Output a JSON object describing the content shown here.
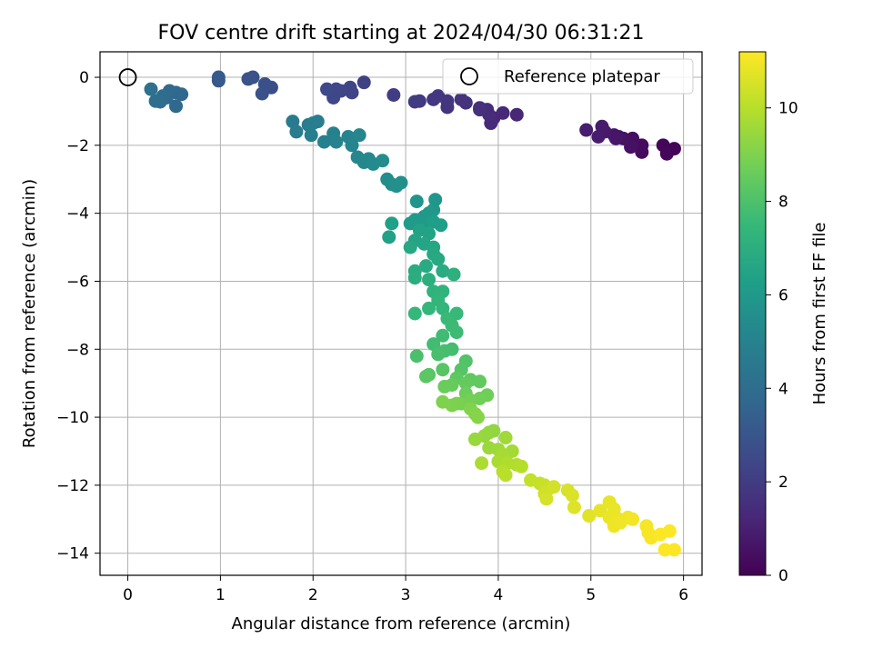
{
  "chart_data": {
    "type": "scatter",
    "title": "FOV centre drift starting at 2024/04/30 06:31:21",
    "xlabel": "Angular distance from reference (arcmin)",
    "ylabel": "Rotation from reference (arcmin)",
    "xlim": [
      -0.3,
      6.2
    ],
    "ylim": [
      -14.65,
      0.75
    ],
    "xticks": [
      0,
      1,
      2,
      3,
      4,
      5,
      6
    ],
    "yticks": [
      0,
      -2,
      -4,
      -6,
      -8,
      -10,
      -12,
      -14
    ],
    "grid": true,
    "legend": {
      "position": "top-right",
      "entries": [
        "Reference platepar"
      ]
    },
    "reference_point": {
      "label": "Reference platepar",
      "x": 0,
      "y": 0
    },
    "colorbar": {
      "label": "Hours from first FF file",
      "min": 0,
      "max": 11.2,
      "ticks": [
        0,
        2,
        4,
        6,
        8,
        10
      ],
      "colormap": [
        "#440154",
        "#482878",
        "#3e4989",
        "#31688e",
        "#26828e",
        "#1f9e89",
        "#35b779",
        "#6ece58",
        "#b5de2b",
        "#fde725"
      ]
    },
    "points": [
      [
        5.9,
        -2.1,
        0.1
      ],
      [
        5.78,
        -2.0,
        0.15
      ],
      [
        5.82,
        -2.25,
        0.2
      ],
      [
        5.55,
        -2.0,
        0.3
      ],
      [
        5.55,
        -2.2,
        0.35
      ],
      [
        5.45,
        -1.95,
        0.4
      ],
      [
        5.45,
        -1.8,
        0.45
      ],
      [
        5.43,
        -2.05,
        0.5
      ],
      [
        5.35,
        -1.8,
        0.55
      ],
      [
        5.3,
        -1.75,
        0.6
      ],
      [
        5.25,
        -1.7,
        0.65
      ],
      [
        5.27,
        -1.8,
        0.7
      ],
      [
        5.15,
        -1.6,
        0.75
      ],
      [
        5.12,
        -1.45,
        0.8
      ],
      [
        5.08,
        -1.75,
        0.85
      ],
      [
        4.95,
        -1.55,
        0.9
      ],
      [
        4.2,
        -1.1,
        1.2
      ],
      [
        4.05,
        -1.05,
        1.25
      ],
      [
        3.95,
        -1.2,
        1.3
      ],
      [
        3.92,
        -1.35,
        1.35
      ],
      [
        3.9,
        -1.1,
        1.4
      ],
      [
        3.88,
        -0.95,
        1.45
      ],
      [
        3.8,
        -0.9,
        1.5
      ],
      [
        3.8,
        -0.95,
        1.55
      ],
      [
        3.65,
        -0.75,
        1.6
      ],
      [
        3.6,
        -0.65,
        1.65
      ],
      [
        3.45,
        -0.88,
        1.7
      ],
      [
        3.45,
        -0.7,
        1.75
      ],
      [
        3.35,
        -0.55,
        1.8
      ],
      [
        3.3,
        -0.65,
        1.85
      ],
      [
        3.15,
        -0.7,
        1.9
      ],
      [
        3.1,
        -0.72,
        1.95
      ],
      [
        2.87,
        -0.52,
        2.0
      ],
      [
        2.55,
        -0.15,
        2.2
      ],
      [
        2.4,
        -0.3,
        2.25
      ],
      [
        2.42,
        -0.45,
        2.3
      ],
      [
        2.3,
        -0.4,
        2.35
      ],
      [
        2.25,
        -0.35,
        2.4
      ],
      [
        2.22,
        -0.6,
        2.45
      ],
      [
        2.15,
        -0.35,
        2.5
      ],
      [
        1.55,
        -0.3,
        2.7
      ],
      [
        1.48,
        -0.2,
        2.75
      ],
      [
        1.45,
        -0.48,
        2.8
      ],
      [
        1.35,
        0.0,
        2.85
      ],
      [
        1.3,
        -0.05,
        2.9
      ],
      [
        0.98,
        -0.1,
        3.1
      ],
      [
        0.98,
        0.0,
        3.15
      ],
      [
        0.58,
        -0.5,
        3.7
      ],
      [
        0.52,
        -0.45,
        3.75
      ],
      [
        0.52,
        -0.85,
        3.8
      ],
      [
        0.45,
        -0.4,
        3.85
      ],
      [
        0.42,
        -0.6,
        3.9
      ],
      [
        0.38,
        -0.55,
        3.95
      ],
      [
        0.35,
        -0.72,
        4.0
      ],
      [
        0.3,
        -0.7,
        4.05
      ],
      [
        0.25,
        -0.35,
        4.1
      ],
      [
        1.78,
        -1.3,
        4.6
      ],
      [
        1.82,
        -1.6,
        4.65
      ],
      [
        1.95,
        -1.4,
        4.7
      ],
      [
        2.0,
        -1.35,
        4.75
      ],
      [
        2.05,
        -1.3,
        4.8
      ],
      [
        1.98,
        -1.7,
        4.85
      ],
      [
        2.12,
        -1.9,
        4.9
      ],
      [
        2.22,
        -1.65,
        4.95
      ],
      [
        2.25,
        -1.9,
        5.0
      ],
      [
        2.38,
        -1.75,
        5.05
      ],
      [
        2.42,
        -2.0,
        5.1
      ],
      [
        2.5,
        -1.7,
        5.15
      ],
      [
        2.48,
        -2.35,
        5.2
      ],
      [
        2.55,
        -2.5,
        5.25
      ],
      [
        2.6,
        -2.4,
        5.3
      ],
      [
        2.65,
        -2.55,
        5.35
      ],
      [
        2.75,
        -2.45,
        5.4
      ],
      [
        2.8,
        -3.0,
        5.45
      ],
      [
        2.85,
        -3.15,
        5.5
      ],
      [
        2.95,
        -3.1,
        5.55
      ],
      [
        2.9,
        -3.2,
        5.6
      ],
      [
        3.12,
        -3.65,
        5.8
      ],
      [
        3.32,
        -3.6,
        5.85
      ],
      [
        3.3,
        -3.9,
        5.9
      ],
      [
        3.25,
        -4.0,
        5.95
      ],
      [
        3.2,
        -4.1,
        6.0
      ],
      [
        3.1,
        -4.2,
        6.05
      ],
      [
        3.05,
        -4.3,
        6.1
      ],
      [
        3.2,
        -4.3,
        6.15
      ],
      [
        3.3,
        -4.25,
        6.2
      ],
      [
        3.38,
        -4.35,
        6.25
      ],
      [
        2.85,
        -4.3,
        6.3
      ],
      [
        2.82,
        -4.7,
        6.35
      ],
      [
        3.15,
        -4.5,
        6.4
      ],
      [
        3.25,
        -4.6,
        6.45
      ],
      [
        3.1,
        -4.8,
        6.5
      ],
      [
        3.2,
        -4.9,
        6.55
      ],
      [
        3.3,
        -5.0,
        6.6
      ],
      [
        3.05,
        -5.0,
        6.65
      ],
      [
        3.3,
        -5.2,
        6.7
      ],
      [
        3.35,
        -5.35,
        6.75
      ],
      [
        3.22,
        -5.55,
        6.8
      ],
      [
        3.4,
        -5.7,
        6.85
      ],
      [
        3.1,
        -5.7,
        6.9
      ],
      [
        3.1,
        -5.9,
        6.95
      ],
      [
        3.25,
        -5.95,
        7.0
      ],
      [
        3.52,
        -5.8,
        7.05
      ],
      [
        3.3,
        -6.3,
        7.2
      ],
      [
        3.4,
        -6.3,
        7.25
      ],
      [
        3.35,
        -6.55,
        7.3
      ],
      [
        3.4,
        -6.8,
        7.35
      ],
      [
        3.25,
        -6.8,
        7.4
      ],
      [
        3.1,
        -6.95,
        7.45
      ],
      [
        3.55,
        -6.95,
        7.5
      ],
      [
        3.45,
        -7.1,
        7.55
      ],
      [
        3.5,
        -7.3,
        7.6
      ],
      [
        3.55,
        -7.5,
        7.65
      ],
      [
        3.4,
        -7.6,
        7.7
      ],
      [
        3.3,
        -7.85,
        7.75
      ],
      [
        3.5,
        -8.0,
        7.8
      ],
      [
        3.42,
        -8.05,
        7.85
      ],
      [
        3.35,
        -8.15,
        7.9
      ],
      [
        3.12,
        -8.2,
        7.95
      ],
      [
        3.65,
        -8.35,
        8.1
      ],
      [
        3.6,
        -8.6,
        8.15
      ],
      [
        3.4,
        -8.6,
        8.2
      ],
      [
        3.25,
        -8.75,
        8.25
      ],
      [
        3.22,
        -8.8,
        8.3
      ],
      [
        3.55,
        -8.85,
        8.35
      ],
      [
        3.7,
        -8.9,
        8.4
      ],
      [
        3.8,
        -8.95,
        8.45
      ],
      [
        3.65,
        -9.0,
        8.5
      ],
      [
        3.5,
        -9.05,
        8.55
      ],
      [
        3.42,
        -9.1,
        8.6
      ],
      [
        3.65,
        -9.3,
        8.65
      ],
      [
        3.88,
        -9.35,
        8.7
      ],
      [
        3.8,
        -9.45,
        8.75
      ],
      [
        3.7,
        -9.5,
        8.8
      ],
      [
        3.6,
        -9.6,
        8.85
      ],
      [
        3.55,
        -9.6,
        8.9
      ],
      [
        3.5,
        -9.65,
        8.95
      ],
      [
        3.4,
        -9.55,
        9.0
      ],
      [
        3.7,
        -9.75,
        9.05
      ],
      [
        3.75,
        -9.9,
        9.1
      ],
      [
        3.78,
        -10.0,
        9.15
      ],
      [
        3.95,
        -10.4,
        9.3
      ],
      [
        3.9,
        -10.45,
        9.35
      ],
      [
        3.85,
        -10.55,
        9.4
      ],
      [
        3.75,
        -10.65,
        9.45
      ],
      [
        3.9,
        -10.9,
        9.5
      ],
      [
        4.0,
        -10.95,
        9.55
      ],
      [
        4.08,
        -10.6,
        9.6
      ],
      [
        4.15,
        -11.0,
        9.65
      ],
      [
        4.05,
        -11.1,
        9.7
      ],
      [
        4.0,
        -11.3,
        9.75
      ],
      [
        3.82,
        -11.35,
        9.8
      ],
      [
        4.1,
        -11.35,
        9.85
      ],
      [
        4.2,
        -11.4,
        9.9
      ],
      [
        4.25,
        -11.45,
        9.95
      ],
      [
        4.05,
        -11.6,
        10.0
      ],
      [
        4.08,
        -11.7,
        10.05
      ],
      [
        4.35,
        -11.85,
        10.2
      ],
      [
        4.45,
        -11.95,
        10.25
      ],
      [
        4.5,
        -12.0,
        10.3
      ],
      [
        4.55,
        -12.1,
        10.35
      ],
      [
        4.5,
        -12.25,
        10.4
      ],
      [
        4.6,
        -12.05,
        10.45
      ],
      [
        4.52,
        -12.4,
        10.5
      ],
      [
        4.75,
        -12.15,
        10.55
      ],
      [
        4.8,
        -12.3,
        10.6
      ],
      [
        4.82,
        -12.65,
        10.65
      ],
      [
        4.98,
        -12.9,
        10.7
      ],
      [
        5.1,
        -12.75,
        10.8
      ],
      [
        5.2,
        -12.5,
        10.83
      ],
      [
        5.25,
        -12.7,
        10.86
      ],
      [
        5.2,
        -12.95,
        10.89
      ],
      [
        5.3,
        -13.0,
        10.92
      ],
      [
        5.25,
        -13.2,
        10.95
      ],
      [
        5.32,
        -13.1,
        10.98
      ],
      [
        5.4,
        -12.95,
        11.0
      ],
      [
        5.45,
        -13.0,
        11.03
      ],
      [
        5.6,
        -13.2,
        11.06
      ],
      [
        5.62,
        -13.4,
        11.09
      ],
      [
        5.65,
        -13.55,
        11.12
      ],
      [
        5.75,
        -13.45,
        11.14
      ],
      [
        5.85,
        -13.35,
        11.16
      ],
      [
        5.8,
        -13.9,
        11.18
      ],
      [
        5.9,
        -13.9,
        11.2
      ]
    ]
  }
}
